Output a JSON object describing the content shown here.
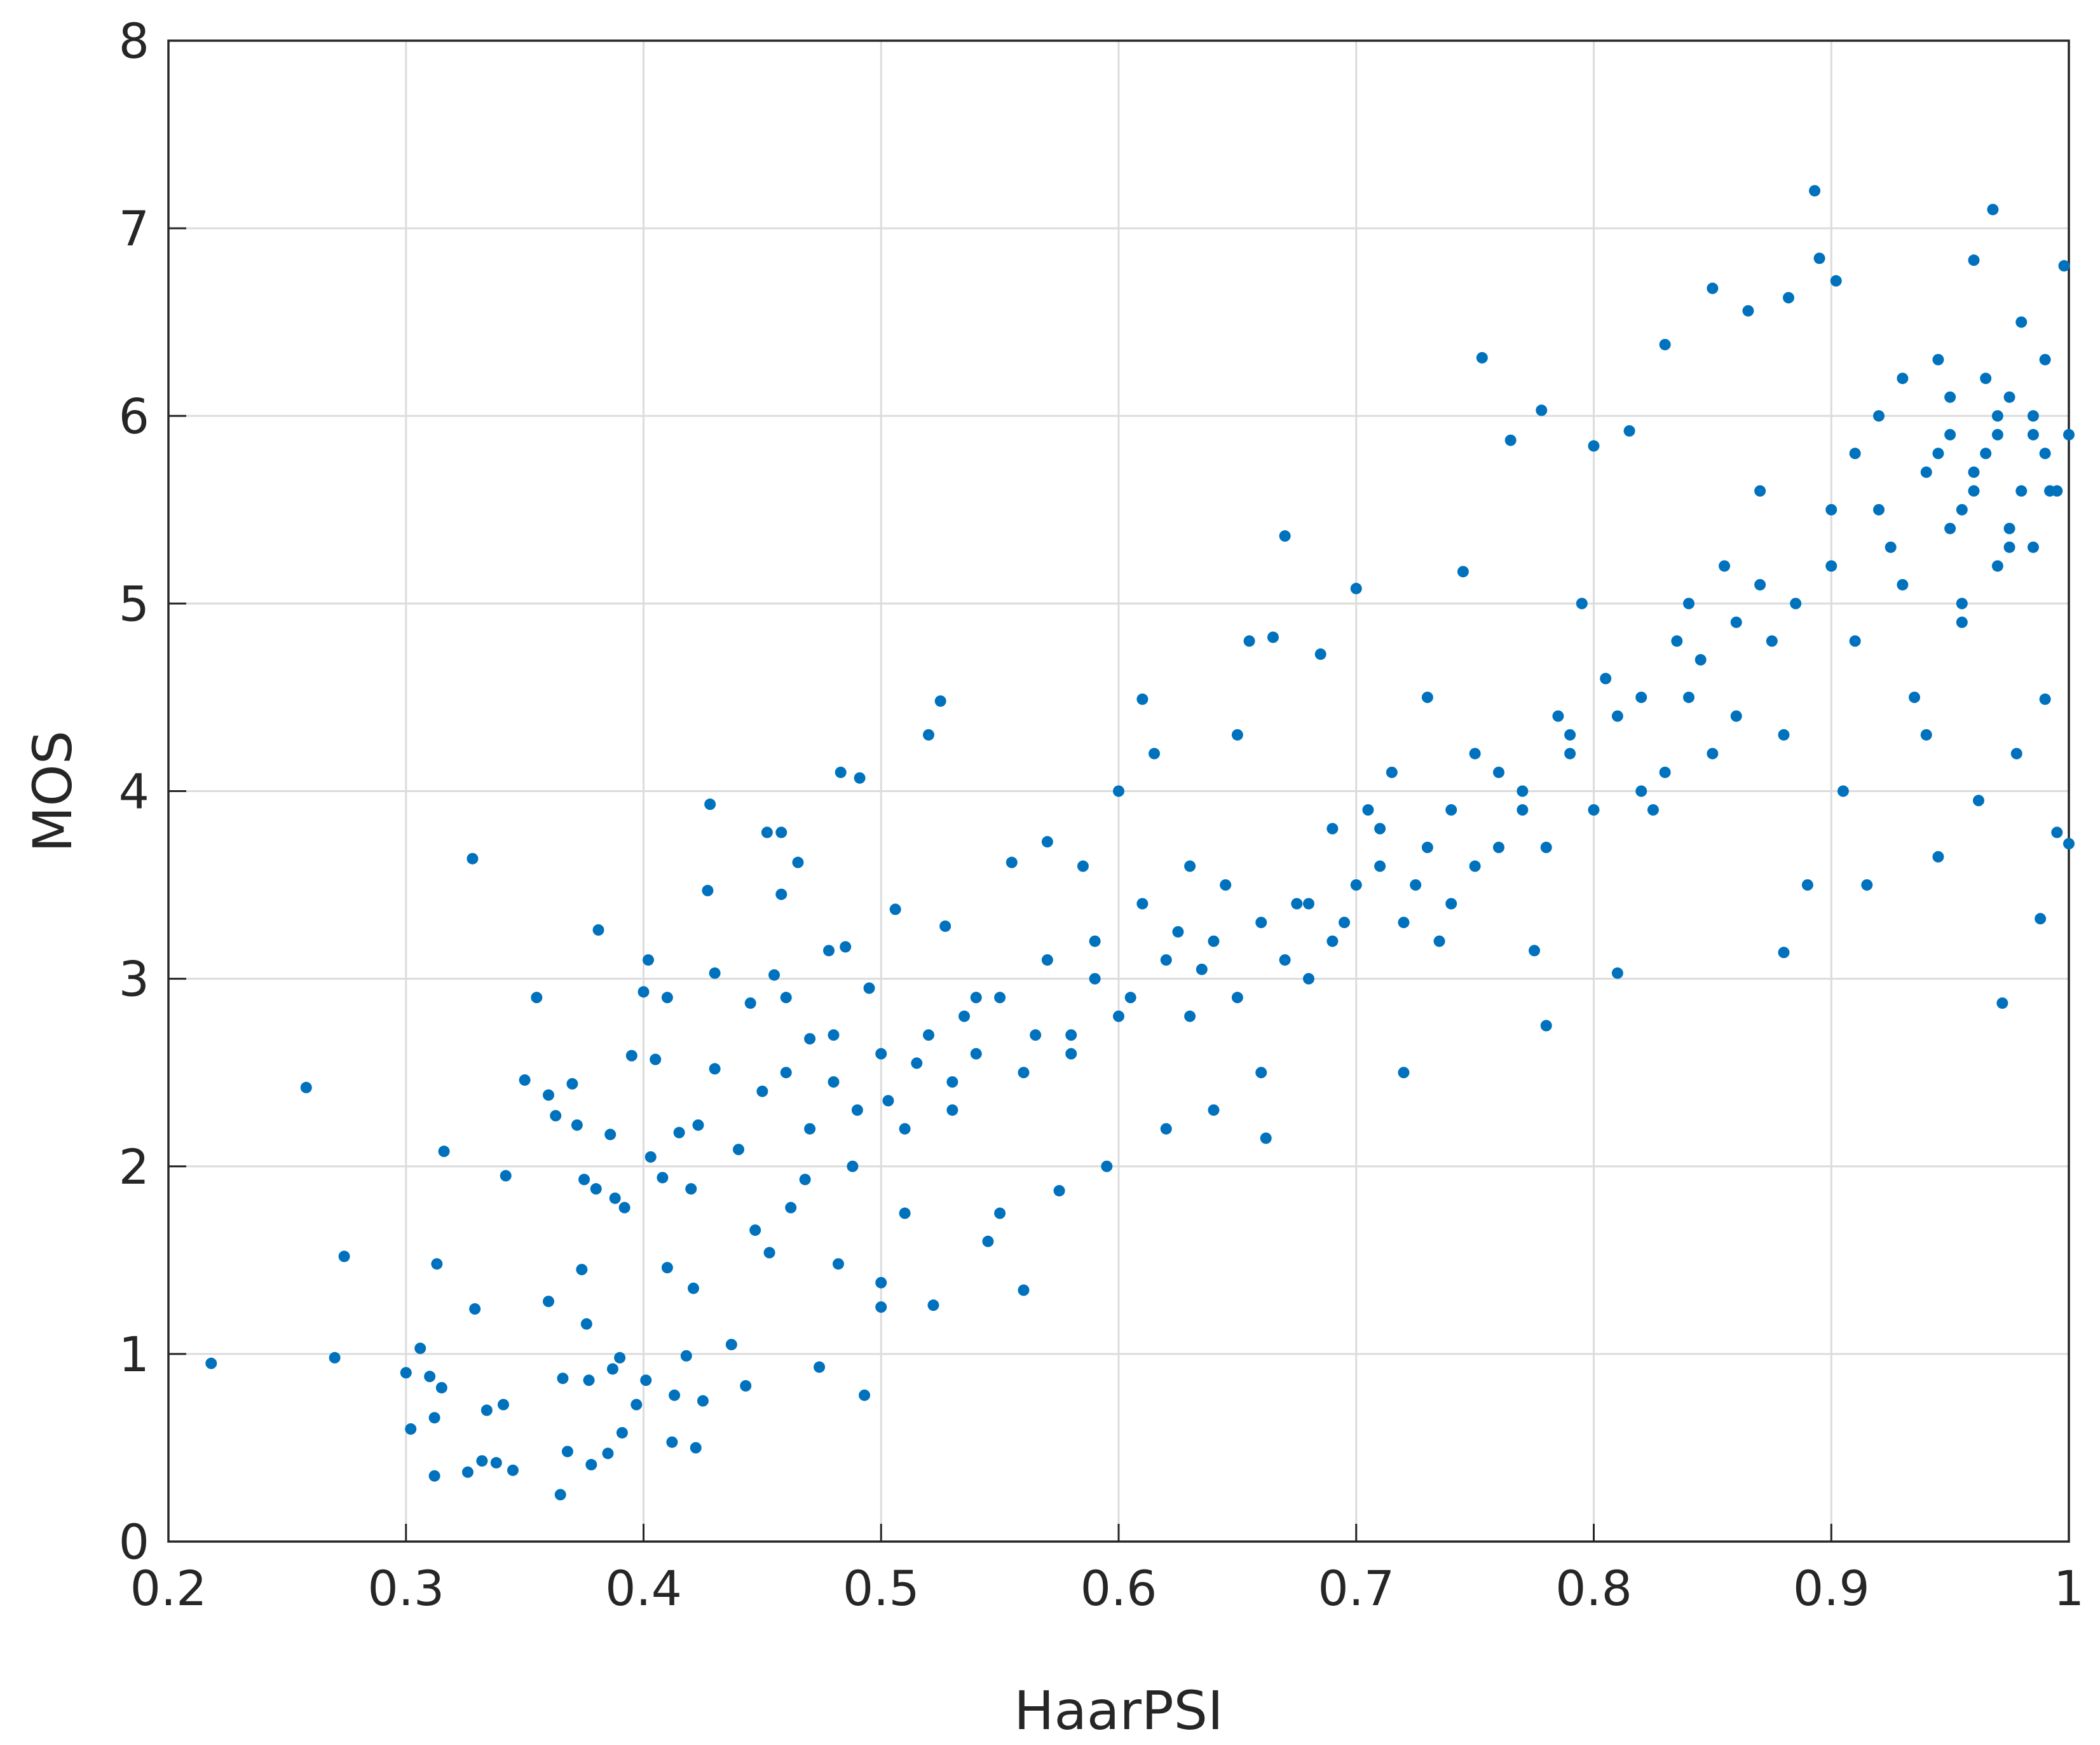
{
  "chart_data": {
    "type": "scatter",
    "x_label": "HaarPSI",
    "y_label": "MOS",
    "color": "#0072bd",
    "grid": true,
    "xlim": [
      0.2,
      1
    ],
    "ylim": [
      0,
      8
    ],
    "xticks": [
      0.2,
      0.3,
      0.4,
      0.5,
      0.6,
      0.7,
      0.8,
      0.9,
      1
    ],
    "yticks": [
      0,
      1,
      2,
      3,
      4,
      5,
      6,
      7,
      8
    ],
    "x": [
      0.218,
      0.258,
      0.27,
      0.274,
      0.3,
      0.302,
      0.306,
      0.31,
      0.312,
      0.312,
      0.313,
      0.315,
      0.316,
      0.326,
      0.328,
      0.329,
      0.332,
      0.334,
      0.338,
      0.341,
      0.342,
      0.345,
      0.35,
      0.355,
      0.36,
      0.36,
      0.363,
      0.365,
      0.366,
      0.368,
      0.37,
      0.372,
      0.374,
      0.375,
      0.376,
      0.377,
      0.378,
      0.38,
      0.381,
      0.385,
      0.386,
      0.387,
      0.388,
      0.39,
      0.391,
      0.392,
      0.395,
      0.397,
      0.4,
      0.401,
      0.402,
      0.403,
      0.405,
      0.408,
      0.41,
      0.41,
      0.412,
      0.413,
      0.415,
      0.418,
      0.42,
      0.421,
      0.422,
      0.423,
      0.425,
      0.427,
      0.428,
      0.43,
      0.43,
      0.437,
      0.44,
      0.443,
      0.445,
      0.447,
      0.452,
      0.453,
      0.455,
      0.458,
      0.458,
      0.46,
      0.462,
      0.465,
      0.468,
      0.47,
      0.474,
      0.478,
      0.48,
      0.482,
      0.483,
      0.485,
      0.488,
      0.491,
      0.493,
      0.495,
      0.5,
      0.5,
      0.503,
      0.506,
      0.51,
      0.515,
      0.52,
      0.522,
      0.525,
      0.527,
      0.53,
      0.535,
      0.54,
      0.545,
      0.55,
      0.555,
      0.56,
      0.565,
      0.57,
      0.575,
      0.58,
      0.585,
      0.59,
      0.595,
      0.6,
      0.605,
      0.61,
      0.615,
      0.62,
      0.625,
      0.63,
      0.635,
      0.64,
      0.645,
      0.65,
      0.655,
      0.66,
      0.662,
      0.665,
      0.67,
      0.675,
      0.68,
      0.685,
      0.69,
      0.695,
      0.7,
      0.705,
      0.71,
      0.715,
      0.72,
      0.725,
      0.73,
      0.735,
      0.74,
      0.745,
      0.75,
      0.753,
      0.76,
      0.765,
      0.77,
      0.775,
      0.778,
      0.78,
      0.785,
      0.79,
      0.795,
      0.8,
      0.805,
      0.81,
      0.815,
      0.82,
      0.825,
      0.83,
      0.835,
      0.84,
      0.845,
      0.85,
      0.855,
      0.86,
      0.865,
      0.87,
      0.875,
      0.88,
      0.882,
      0.885,
      0.89,
      0.893,
      0.895,
      0.9,
      0.902,
      0.905,
      0.91,
      0.915,
      0.92,
      0.925,
      0.93,
      0.935,
      0.94,
      0.945,
      0.95,
      0.955,
      0.96,
      0.962,
      0.965,
      0.968,
      0.97,
      0.972,
      0.975,
      0.978,
      0.98,
      0.985,
      0.988,
      0.99,
      0.992,
      0.995,
      0.998,
      1,
      1,
      0.99,
      0.975,
      0.96,
      0.95,
      0.945,
      0.93,
      0.92,
      0.985,
      0.995,
      0.97,
      0.955,
      0.94,
      0.91,
      0.9,
      0.88,
      0.87,
      0.86,
      0.85,
      0.84,
      0.83,
      0.82,
      0.81,
      0.8,
      0.79,
      0.78,
      0.77,
      0.76,
      0.75,
      0.74,
      0.73,
      0.72,
      0.71,
      0.7,
      0.69,
      0.68,
      0.67,
      0.66,
      0.65,
      0.64,
      0.63,
      0.62,
      0.61,
      0.6,
      0.59,
      0.58,
      0.57,
      0.56,
      0.55,
      0.54,
      0.53,
      0.52,
      0.51,
      0.5,
      0.49,
      0.48,
      0.47,
      0.46,
      0.45,
      0.96,
      0.97,
      0.98,
      0.99,
      0.95,
      0.965,
      0.975,
      0.985,
      0.955,
      0.945
    ],
    "values": [
      0.95,
      2.42,
      0.98,
      1.52,
      0.9,
      0.6,
      1.03,
      0.88,
      0.66,
      0.35,
      1.48,
      0.82,
      2.08,
      0.37,
      3.64,
      1.24,
      0.43,
      0.7,
      0.42,
      0.73,
      1.95,
      0.38,
      2.46,
      2.9,
      1.28,
      2.38,
      2.27,
      0.25,
      0.87,
      0.48,
      2.44,
      2.22,
      1.45,
      1.93,
      1.16,
      0.86,
      0.41,
      1.88,
      3.26,
      0.47,
      2.17,
      0.92,
      1.83,
      0.98,
      0.58,
      1.78,
      2.59,
      0.73,
      2.93,
      0.86,
      3.1,
      2.05,
      2.57,
      1.94,
      2.9,
      1.46,
      0.53,
      0.78,
      2.18,
      0.99,
      1.88,
      1.35,
      0.5,
      2.22,
      0.75,
      3.47,
      3.93,
      3.03,
      2.52,
      1.05,
      2.09,
      0.83,
      2.87,
      1.66,
      3.78,
      1.54,
      3.02,
      3.78,
      3.45,
      2.5,
      1.78,
      3.62,
      1.93,
      2.68,
      0.93,
      3.15,
      2.45,
      1.48,
      4.1,
      3.17,
      2.0,
      4.07,
      0.78,
      2.95,
      1.25,
      1.38,
      2.35,
      3.37,
      1.75,
      2.55,
      4.3,
      1.26,
      4.48,
      3.28,
      2.45,
      2.8,
      2.9,
      1.6,
      1.75,
      3.62,
      1.34,
      2.7,
      3.73,
      1.87,
      2.6,
      3.6,
      3.2,
      2.0,
      4.0,
      2.9,
      4.49,
      4.2,
      2.2,
      3.25,
      3.6,
      3.05,
      2.3,
      3.5,
      4.3,
      4.8,
      2.5,
      2.15,
      4.82,
      5.36,
      3.4,
      3.0,
      4.73,
      3.8,
      3.3,
      5.08,
      3.9,
      3.6,
      4.1,
      2.5,
      3.5,
      4.5,
      3.2,
      3.9,
      5.17,
      4.2,
      6.31,
      3.7,
      5.87,
      4.0,
      3.15,
      6.03,
      2.75,
      4.4,
      4.2,
      5.0,
      5.84,
      4.6,
      3.03,
      5.92,
      4.5,
      3.9,
      6.38,
      4.8,
      5.0,
      4.7,
      6.68,
      5.2,
      4.4,
      6.56,
      5.6,
      4.8,
      3.14,
      6.63,
      5.0,
      3.5,
      7.2,
      6.84,
      5.5,
      6.72,
      4.0,
      5.8,
      3.5,
      6.0,
      5.3,
      6.2,
      4.5,
      5.7,
      3.65,
      6.1,
      5.5,
      6.83,
      3.95,
      5.8,
      7.1,
      6.0,
      2.87,
      5.4,
      4.2,
      6.5,
      5.9,
      3.32,
      4.49,
      5.6,
      3.78,
      6.8,
      5.9,
      3.72,
      6.3,
      6.1,
      5.6,
      5.9,
      6.3,
      5.1,
      5.5,
      5.3,
      5.6,
      5.2,
      4.9,
      4.3,
      4.8,
      5.2,
      4.3,
      5.1,
      4.9,
      4.2,
      4.5,
      4.1,
      4.0,
      4.4,
      3.9,
      4.3,
      3.7,
      3.9,
      4.1,
      3.6,
      3.4,
      3.7,
      3.3,
      3.8,
      3.5,
      3.2,
      3.4,
      3.1,
      3.3,
      2.9,
      3.2,
      2.8,
      3.1,
      3.4,
      2.8,
      3.0,
      2.7,
      3.1,
      2.5,
      2.9,
      2.6,
      2.3,
      2.7,
      2.2,
      2.6,
      2.3,
      2.7,
      2.2,
      2.9,
      2.4,
      5.7,
      5.9,
      5.6,
      5.8,
      5.4,
      6.2,
      5.3,
      6.0,
      5.0,
      5.8
    ]
  }
}
